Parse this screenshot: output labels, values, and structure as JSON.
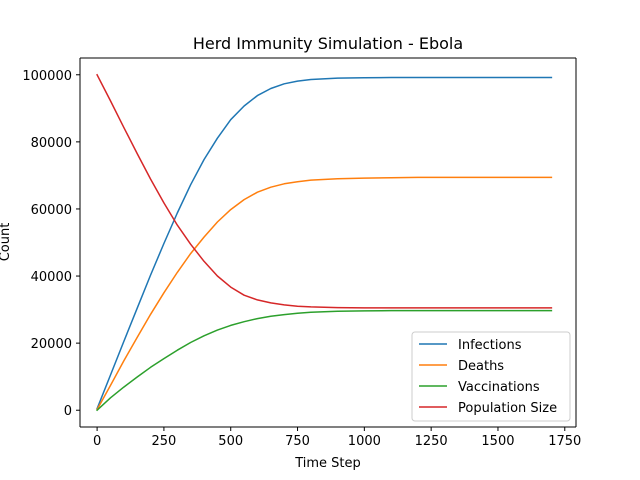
{
  "chart_data": {
    "type": "line",
    "title": "Herd Immunity Simulation - Ebola",
    "xlabel": "Time Step",
    "ylabel": "Count",
    "xlim": [
      -64,
      1792
    ],
    "ylim": [
      -5000,
      105000
    ],
    "xticks": [
      0,
      250,
      500,
      750,
      1000,
      1250,
      1500,
      1750
    ],
    "yticks": [
      0,
      20000,
      40000,
      60000,
      80000,
      100000
    ],
    "grid": false,
    "legend_position": "lower right",
    "x": [
      0,
      50,
      100,
      150,
      200,
      250,
      300,
      350,
      400,
      450,
      500,
      550,
      600,
      650,
      700,
      750,
      800,
      900,
      1000,
      1100,
      1200,
      1300,
      1400,
      1500,
      1600,
      1700
    ],
    "series": [
      {
        "name": "Infections",
        "color": "#1f77b4",
        "values": [
          500,
          10500,
          20500,
          30400,
          40300,
          49700,
          58800,
          67200,
          74700,
          81100,
          86600,
          90700,
          93800,
          95900,
          97300,
          98100,
          98600,
          99000,
          99100,
          99200,
          99200,
          99200,
          99200,
          99200,
          99200,
          99200
        ]
      },
      {
        "name": "Deaths",
        "color": "#ff7f0e",
        "values": [
          200,
          7400,
          14700,
          21700,
          28600,
          35000,
          41100,
          46700,
          51600,
          56100,
          59800,
          62800,
          65000,
          66500,
          67500,
          68100,
          68600,
          69000,
          69200,
          69300,
          69400,
          69400,
          69400,
          69400,
          69400,
          69400
        ]
      },
      {
        "name": "Vaccinations",
        "color": "#2ca02c",
        "values": [
          0,
          3700,
          6900,
          9900,
          12800,
          15400,
          17900,
          20200,
          22200,
          23900,
          25300,
          26400,
          27300,
          28000,
          28500,
          28900,
          29200,
          29500,
          29600,
          29700,
          29700,
          29700,
          29700,
          29700,
          29700,
          29700
        ]
      },
      {
        "name": "Population Size",
        "color": "#d62728",
        "values": [
          100000,
          92200,
          84300,
          76500,
          68900,
          61800,
          55200,
          49500,
          44400,
          40000,
          36700,
          34300,
          32900,
          32000,
          31400,
          31000,
          30800,
          30600,
          30500,
          30500,
          30500,
          30500,
          30500,
          30500,
          30500,
          30500
        ]
      }
    ]
  }
}
